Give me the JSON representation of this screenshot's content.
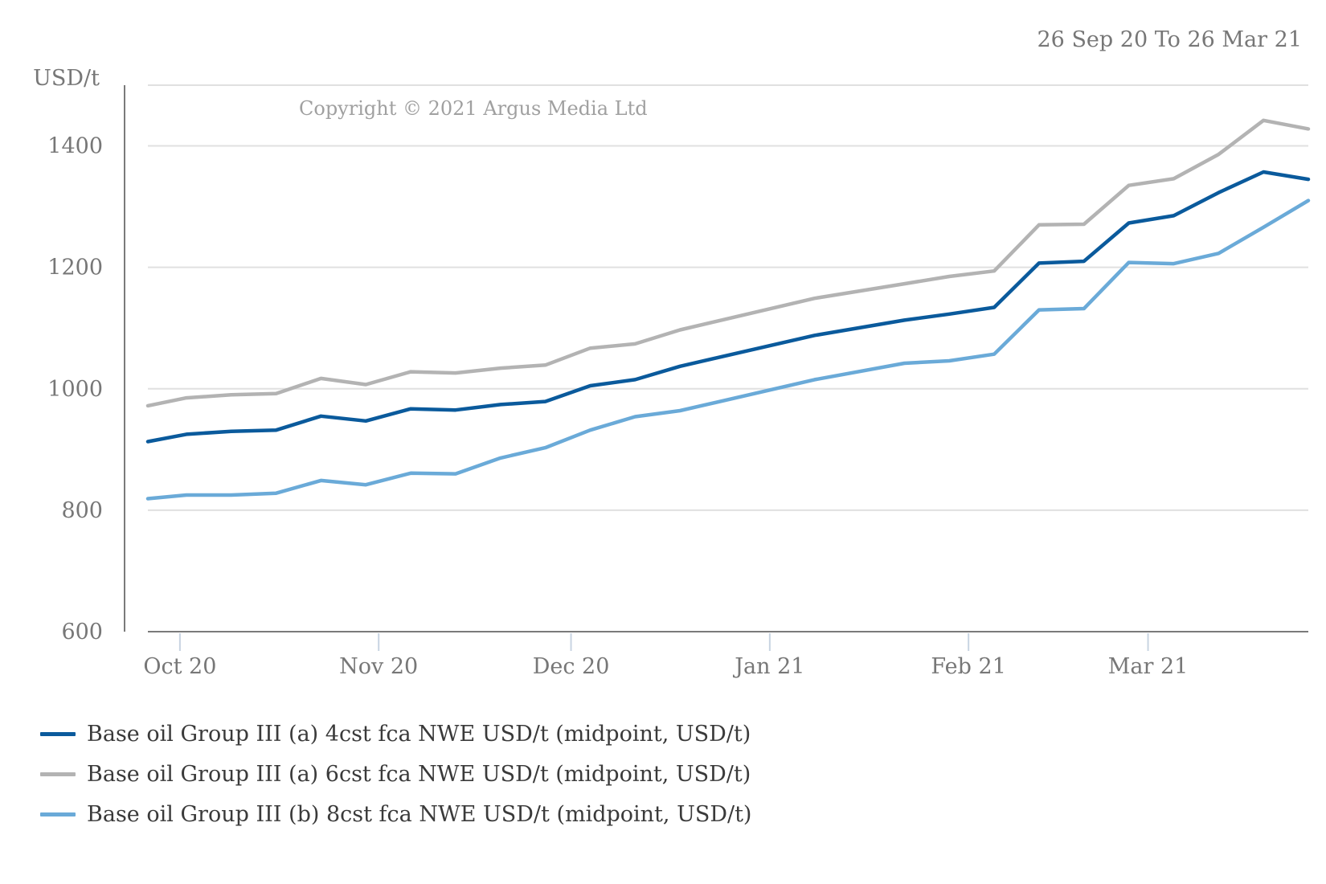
{
  "header": {
    "date_range": "26 Sep 20 To 26 Mar 21"
  },
  "copyright": "Copyright © 2021 Argus Media Ltd",
  "colors": {
    "grid": "#e0e0e0",
    "axis": "#7a7a7a",
    "tick_text": "#777777",
    "copyright": "#a0a0a0"
  },
  "chart_data": {
    "type": "line",
    "ylabel": "USD/t",
    "ylim": [
      600,
      1500
    ],
    "yticks": [
      600,
      800,
      1000,
      1200,
      1400
    ],
    "grid": true,
    "legend_position": "bottom",
    "xlim": [
      "2020-09-26",
      "2021-03-26"
    ],
    "xtick_labels": [
      {
        "label": "Oct 20",
        "date": "2020-10-01"
      },
      {
        "label": "Nov 20",
        "date": "2020-11-01"
      },
      {
        "label": "Dec 20",
        "date": "2020-12-01"
      },
      {
        "label": "Jan 21",
        "date": "2021-01-01"
      },
      {
        "label": "Feb 21",
        "date": "2021-02-01"
      },
      {
        "label": "Mar 21",
        "date": "2021-03-01"
      }
    ],
    "x": [
      "2020-09-26",
      "2020-10-02",
      "2020-10-09",
      "2020-10-16",
      "2020-10-23",
      "2020-10-30",
      "2020-11-06",
      "2020-11-13",
      "2020-11-20",
      "2020-11-27",
      "2020-12-04",
      "2020-12-11",
      "2020-12-18",
      "2021-01-08",
      "2021-01-22",
      "2021-01-29",
      "2021-02-05",
      "2021-02-12",
      "2021-02-19",
      "2021-02-26",
      "2021-03-05",
      "2021-03-12",
      "2021-03-19",
      "2021-03-26"
    ],
    "series": [
      {
        "name": "Base oil Group III (a) 4cst fca NWE USD/t (midpoint, USD/t)",
        "color": "#0a5a9c",
        "values": [
          913,
          925,
          930,
          932,
          955,
          947,
          967,
          965,
          974,
          979,
          1005,
          1015,
          1037,
          1088,
          1113,
          1123,
          1134,
          1207,
          1210,
          1273,
          1285,
          1323,
          1357,
          1345
        ]
      },
      {
        "name": "Base oil Group III (a) 6cst fca NWE USD/t (midpoint, USD/t)",
        "color": "#b3b3b3",
        "values": [
          972,
          985,
          990,
          992,
          1017,
          1007,
          1028,
          1026,
          1034,
          1039,
          1067,
          1074,
          1097,
          1149,
          1173,
          1185,
          1194,
          1270,
          1271,
          1335,
          1346,
          1386,
          1442,
          1428
        ]
      },
      {
        "name": "Base oil Group III (b) 8cst fca NWE USD/t (midpoint, USD/t)",
        "color": "#6aaad8",
        "values": [
          819,
          825,
          825,
          828,
          849,
          842,
          861,
          860,
          886,
          903,
          932,
          954,
          964,
          1015,
          1042,
          1046,
          1057,
          1130,
          1132,
          1208,
          1206,
          1223,
          1266,
          1310
        ]
      }
    ]
  }
}
